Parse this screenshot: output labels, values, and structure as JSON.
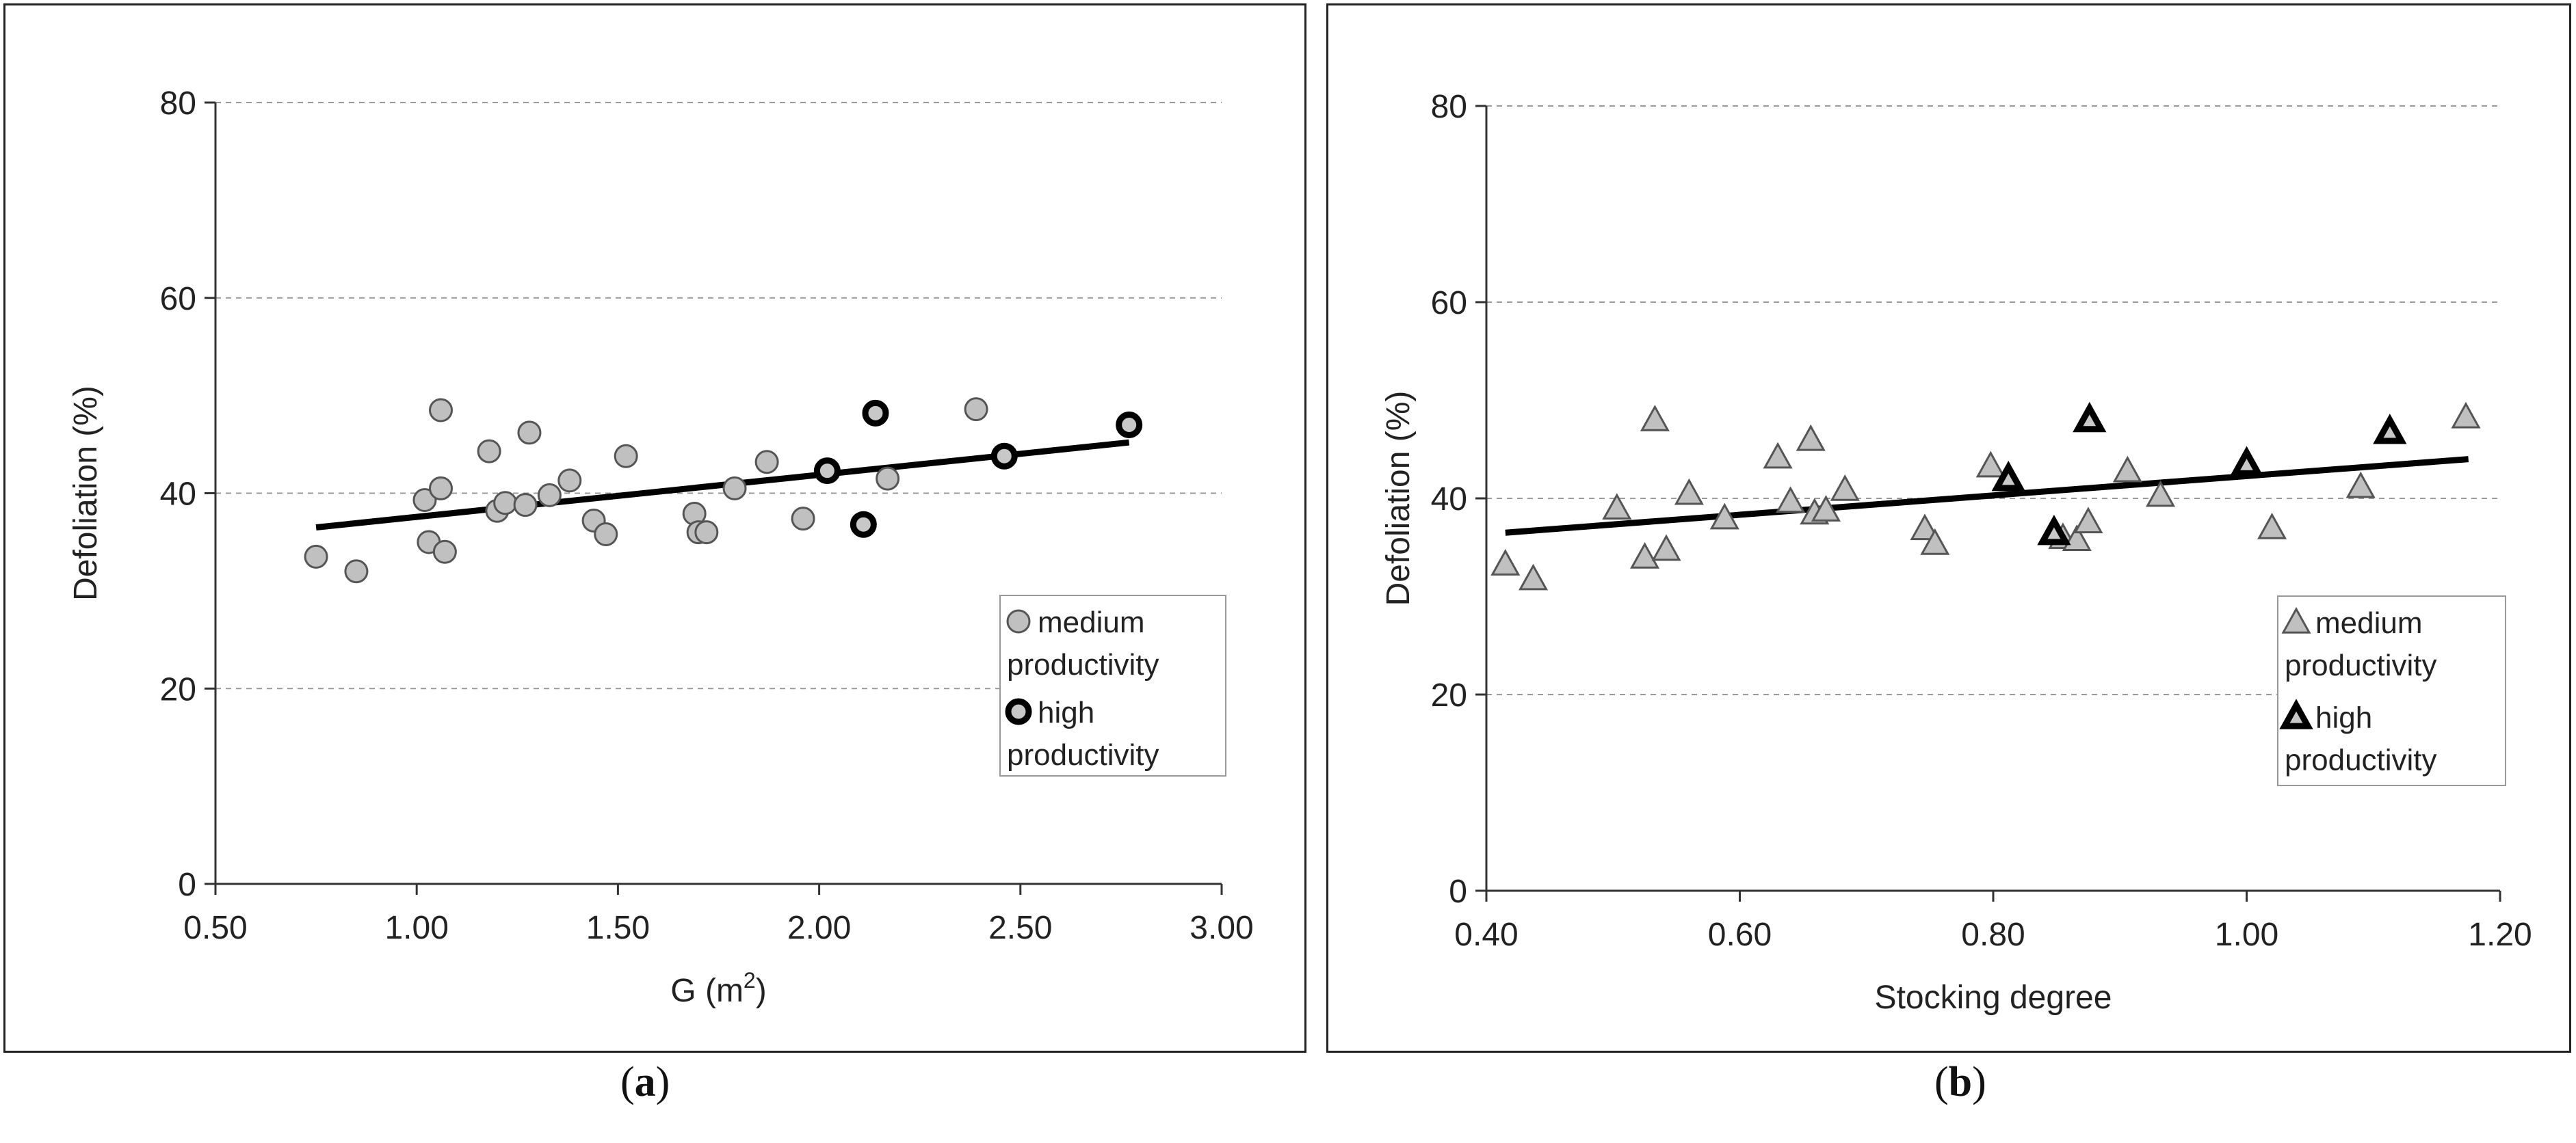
{
  "colors": {
    "medium_fill": "#c0c0c0",
    "medium_stroke": "#555555",
    "high_fill": "#c8c8c8",
    "high_stroke": "#000000",
    "trend": "#000000",
    "grid": "#999999"
  },
  "captions": {
    "a_open": "(",
    "a_letter": "a",
    "a_close": ")",
    "b_open": "(",
    "b_letter": "b",
    "b_close": ")"
  },
  "chart_data": [
    {
      "id": "a",
      "type": "scatter",
      "xlabel": "G (m",
      "xlabel_sup": "2",
      "xlabel_tail": ")",
      "ylabel": "Defoliation (%)",
      "xlim": [
        0.5,
        3.0
      ],
      "ylim": [
        0,
        80
      ],
      "xticks": [
        "0.50",
        "1.00",
        "1.50",
        "2.00",
        "2.50",
        "3.00"
      ],
      "yticks": [
        "0",
        "20",
        "40",
        "60",
        "80"
      ],
      "grid": "horizontal dashed",
      "legend_position": "bottom-right",
      "legend": [
        {
          "marker": "circle",
          "style": "medium",
          "lines": [
            "medium",
            "productivity"
          ]
        },
        {
          "marker": "circle",
          "style": "high",
          "lines": [
            "high",
            "productivity"
          ]
        }
      ],
      "trendline": {
        "x": [
          0.75,
          2.77
        ],
        "y": [
          36.5,
          45.2
        ]
      },
      "series": [
        {
          "name": "medium productivity",
          "marker": "circle",
          "style": "medium",
          "points": [
            [
              0.75,
              33.5
            ],
            [
              0.85,
              32.0
            ],
            [
              1.02,
              39.3
            ],
            [
              1.03,
              35.0
            ],
            [
              1.06,
              40.5
            ],
            [
              1.06,
              48.5
            ],
            [
              1.07,
              34.0
            ],
            [
              1.18,
              44.3
            ],
            [
              1.2,
              38.2
            ],
            [
              1.22,
              39.0
            ],
            [
              1.27,
              38.8
            ],
            [
              1.28,
              46.2
            ],
            [
              1.33,
              39.8
            ],
            [
              1.38,
              41.3
            ],
            [
              1.44,
              37.2
            ],
            [
              1.47,
              35.8
            ],
            [
              1.52,
              43.8
            ],
            [
              1.69,
              37.9
            ],
            [
              1.7,
              36.0
            ],
            [
              1.72,
              36.0
            ],
            [
              1.79,
              40.5
            ],
            [
              1.87,
              43.2
            ],
            [
              1.96,
              37.4
            ],
            [
              2.17,
              41.5
            ],
            [
              2.39,
              48.6
            ]
          ]
        },
        {
          "name": "high productivity",
          "marker": "circle",
          "style": "high",
          "points": [
            [
              2.02,
              42.3
            ],
            [
              2.11,
              36.8
            ],
            [
              2.14,
              48.2
            ],
            [
              2.46,
              43.8
            ],
            [
              2.77,
              47.0
            ]
          ]
        }
      ]
    },
    {
      "id": "b",
      "type": "scatter",
      "xlabel": "Stocking degree",
      "ylabel": "Defoliation (%)",
      "xlim": [
        0.4,
        1.2
      ],
      "ylim": [
        0,
        80
      ],
      "xticks": [
        "0.40",
        "0.60",
        "0.80",
        "1.00",
        "1.20"
      ],
      "yticks": [
        "0",
        "20",
        "40",
        "60",
        "80"
      ],
      "grid": "horizontal dashed",
      "legend_position": "bottom-right",
      "legend": [
        {
          "marker": "triangle",
          "style": "medium",
          "lines": [
            "medium",
            "productivity"
          ]
        },
        {
          "marker": "triangle",
          "style": "high",
          "lines": [
            "high",
            "productivity"
          ]
        }
      ],
      "trendline": {
        "x": [
          0.415,
          1.175
        ],
        "y": [
          36.5,
          44.0
        ]
      },
      "series": [
        {
          "name": "medium productivity",
          "marker": "triangle",
          "style": "medium",
          "points": [
            [
              0.415,
              33.3
            ],
            [
              0.437,
              31.8
            ],
            [
              0.503,
              39.0
            ],
            [
              0.525,
              34.0
            ],
            [
              0.533,
              48.0
            ],
            [
              0.542,
              34.8
            ],
            [
              0.56,
              40.5
            ],
            [
              0.588,
              38.0
            ],
            [
              0.63,
              44.2
            ],
            [
              0.64,
              39.7
            ],
            [
              0.656,
              46.0
            ],
            [
              0.659,
              38.5
            ],
            [
              0.668,
              38.8
            ],
            [
              0.683,
              40.9
            ],
            [
              0.746,
              36.9
            ],
            [
              0.754,
              35.4
            ],
            [
              0.798,
              43.3
            ],
            [
              0.855,
              36.0
            ],
            [
              0.866,
              35.8
            ],
            [
              0.875,
              37.6
            ],
            [
              0.906,
              42.8
            ],
            [
              0.932,
              40.3
            ],
            [
              1.02,
              37.0
            ],
            [
              1.09,
              41.2
            ],
            [
              1.173,
              48.3
            ]
          ]
        },
        {
          "name": "high productivity",
          "marker": "triangle",
          "style": "high",
          "points": [
            [
              0.812,
              42.0
            ],
            [
              0.848,
              36.5
            ],
            [
              0.876,
              48.0
            ],
            [
              1.0,
              43.5
            ],
            [
              1.113,
              46.8
            ]
          ]
        }
      ]
    }
  ]
}
